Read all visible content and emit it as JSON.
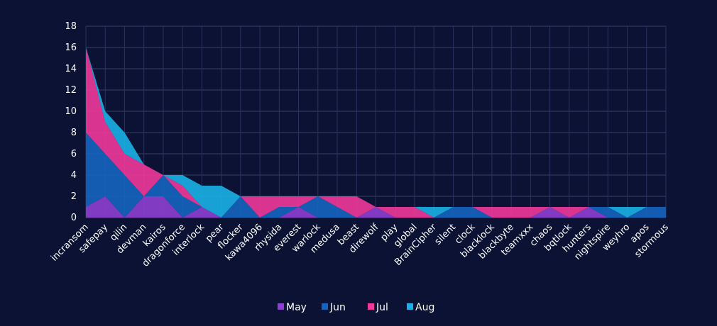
{
  "chart_data": {
    "type": "area",
    "stacked": true,
    "title": "",
    "xlabel": "",
    "ylabel": "",
    "ylim": [
      0,
      18
    ],
    "yticks": [
      0,
      2,
      4,
      6,
      8,
      10,
      12,
      14,
      16,
      18
    ],
    "grid": true,
    "legend_position": "bottom",
    "categories": [
      "incransom",
      "safepay",
      "qilin",
      "devman",
      "kairos",
      "dragonforce",
      "interlock",
      "pear",
      "flocker",
      "kawa4096",
      "rhysida",
      "everest",
      "warlock",
      "medusa",
      "beast",
      "direwolf",
      "play",
      "global",
      "BrainCipher",
      "silent",
      "clock",
      "blacklock",
      "blackbyte",
      "teamxxx",
      "chaos",
      "bqtlock",
      "hunters",
      "nightspire",
      "weyhro",
      "apos",
      "stormous"
    ],
    "series": [
      {
        "name": "May",
        "color": "#8e3fd1",
        "values": [
          1,
          2,
          0,
          2,
          2,
          0,
          1,
          0,
          0,
          0,
          0,
          1,
          0,
          0,
          0,
          1,
          0,
          0,
          0,
          0,
          0,
          0,
          0,
          0,
          1,
          0,
          1,
          0,
          0,
          0,
          0
        ]
      },
      {
        "name": "Jun",
        "color": "#1565c0",
        "values": [
          7,
          4,
          4,
          0,
          2,
          2,
          0,
          0,
          2,
          0,
          1,
          0,
          2,
          1,
          0,
          0,
          0,
          0,
          0,
          1,
          1,
          0,
          0,
          0,
          0,
          0,
          0,
          1,
          0,
          1,
          1
        ]
      },
      {
        "name": "Jul",
        "color": "#f0399a",
        "values": [
          8,
          3,
          2,
          3,
          0,
          1,
          0,
          0,
          0,
          2,
          1,
          1,
          0,
          1,
          2,
          0,
          1,
          1,
          0,
          0,
          0,
          1,
          1,
          1,
          0,
          1,
          0,
          0,
          0,
          0,
          0
        ]
      },
      {
        "name": "Aug",
        "color": "#1ab1e6",
        "values": [
          0,
          1,
          2,
          0,
          0,
          1,
          2,
          3,
          0,
          0,
          0,
          0,
          0,
          0,
          0,
          0,
          0,
          0,
          1,
          0,
          0,
          0,
          0,
          0,
          0,
          0,
          0,
          0,
          1,
          0,
          0
        ]
      }
    ]
  }
}
